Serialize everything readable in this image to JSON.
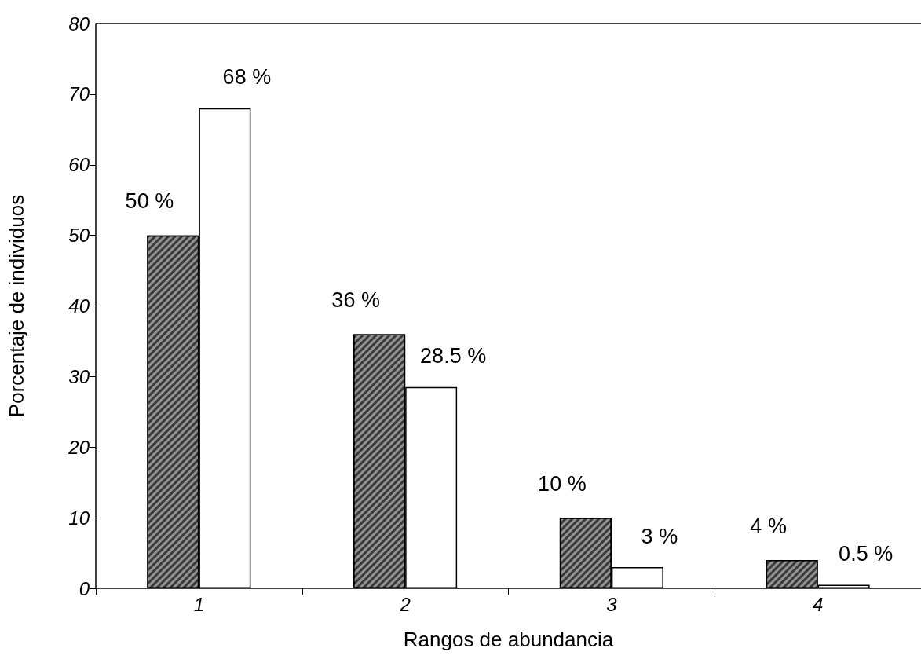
{
  "chart_data": {
    "type": "bar",
    "xlabel": "Rangos de abundancia",
    "ylabel": "Porcentaje de individuos",
    "categories": [
      "1",
      "2",
      "3",
      "4"
    ],
    "series": [
      {
        "color": "#3a3a3a",
        "values": [
          50,
          36,
          10,
          4
        ],
        "value_labels": [
          "50 %",
          "36 %",
          "10 %",
          "4 %"
        ]
      },
      {
        "color": "#ffffff",
        "values": [
          68,
          28.5,
          3,
          0.5
        ],
        "value_labels": [
          "68 %",
          "28.5 %",
          "3 %",
          "0.5 %"
        ]
      }
    ],
    "ylim": [
      0,
      80
    ],
    "yticks": [
      0,
      10,
      20,
      30,
      40,
      50,
      60,
      70,
      80
    ],
    "grid": false
  }
}
